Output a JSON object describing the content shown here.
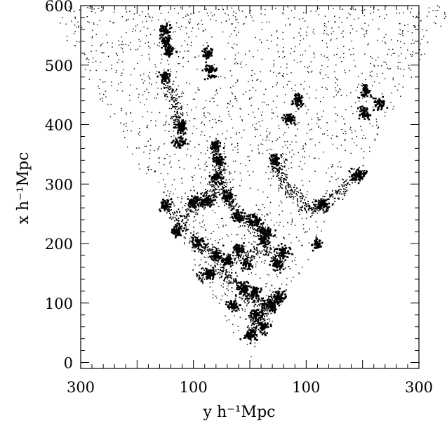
{
  "chart_data": {
    "type": "scatter",
    "title": "",
    "xlabel": "y h⁻¹Mpc",
    "ylabel": "x h⁻¹Mpc",
    "x_tick_labels": [
      "300",
      "100",
      "100",
      "300"
    ],
    "x_tick_values": [
      -300,
      -100,
      100,
      300
    ],
    "xlim": [
      -300,
      300
    ],
    "y_tick_labels": [
      "0",
      "100",
      "200",
      "300",
      "400",
      "500",
      "600"
    ],
    "y_tick_values": [
      0,
      100,
      200,
      300,
      400,
      500,
      600
    ],
    "ylim": [
      -10,
      600
    ],
    "grid": false,
    "legend": "none",
    "point_color": "#000000",
    "points_description": "galaxy positions in a wedge-shaped slice",
    "clusters": [
      {
        "x": -150,
        "y": 540
      },
      {
        "x": -149,
        "y": 560
      },
      {
        "x": -143,
        "y": 525
      },
      {
        "x": -150,
        "y": 480
      },
      {
        "x": -75,
        "y": 520
      },
      {
        "x": -70,
        "y": 490
      },
      {
        "x": 85,
        "y": 440
      },
      {
        "x": 70,
        "y": 410
      },
      {
        "x": 205,
        "y": 455
      },
      {
        "x": 230,
        "y": 435
      },
      {
        "x": 205,
        "y": 420
      },
      {
        "x": -120,
        "y": 395
      },
      {
        "x": -125,
        "y": 370
      },
      {
        "x": -60,
        "y": 365
      },
      {
        "x": -55,
        "y": 340
      },
      {
        "x": -60,
        "y": 310
      },
      {
        "x": -40,
        "y": 280
      },
      {
        "x": 45,
        "y": 340
      },
      {
        "x": 190,
        "y": 315
      },
      {
        "x": 210,
        "y": 310
      },
      {
        "x": 130,
        "y": 265
      },
      {
        "x": -150,
        "y": 265
      },
      {
        "x": -100,
        "y": 270
      },
      {
        "x": -75,
        "y": 270
      },
      {
        "x": -20,
        "y": 245
      },
      {
        "x": 10,
        "y": 240
      },
      {
        "x": 30,
        "y": 220
      },
      {
        "x": -130,
        "y": 220
      },
      {
        "x": -90,
        "y": 200
      },
      {
        "x": -60,
        "y": 180
      },
      {
        "x": -40,
        "y": 170
      },
      {
        "x": -20,
        "y": 190
      },
      {
        "x": -5,
        "y": 165
      },
      {
        "x": 25,
        "y": 205
      },
      {
        "x": 60,
        "y": 185
      },
      {
        "x": 50,
        "y": 165
      },
      {
        "x": 120,
        "y": 198
      },
      {
        "x": -100,
        "y": 140
      },
      {
        "x": -70,
        "y": 150
      },
      {
        "x": -10,
        "y": 125
      },
      {
        "x": 10,
        "y": 118
      },
      {
        "x": -30,
        "y": 95
      },
      {
        "x": 40,
        "y": 95
      },
      {
        "x": 55,
        "y": 110
      },
      {
        "x": 0,
        "y": 45
      },
      {
        "x": 25,
        "y": 60
      },
      {
        "x": 10,
        "y": 80
      }
    ]
  }
}
